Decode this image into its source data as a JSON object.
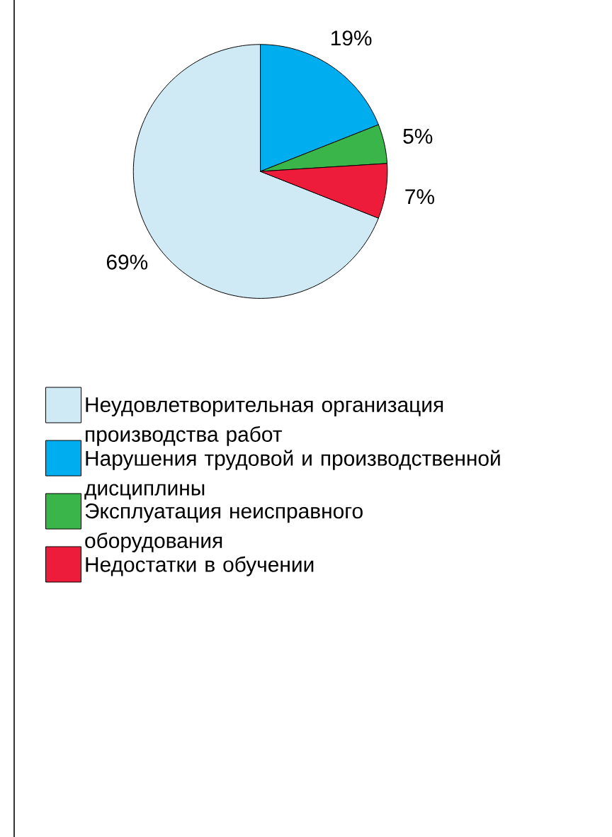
{
  "chart_data": {
    "type": "pie",
    "categories": [
      "Неудовлетворительная организация производства работ",
      "Нарушения трудовой и производственной дисциплины",
      "Эксплуатация неисправного оборудования",
      "Недостатки в обучении"
    ],
    "values": [
      69,
      19,
      5,
      7
    ],
    "value_labels": [
      "69%",
      "19%",
      "5%",
      "7%"
    ],
    "colors": [
      "#cfe9f5",
      "#00aeef",
      "#3ab54a",
      "#ed1c3a"
    ],
    "legend": "bottom"
  }
}
